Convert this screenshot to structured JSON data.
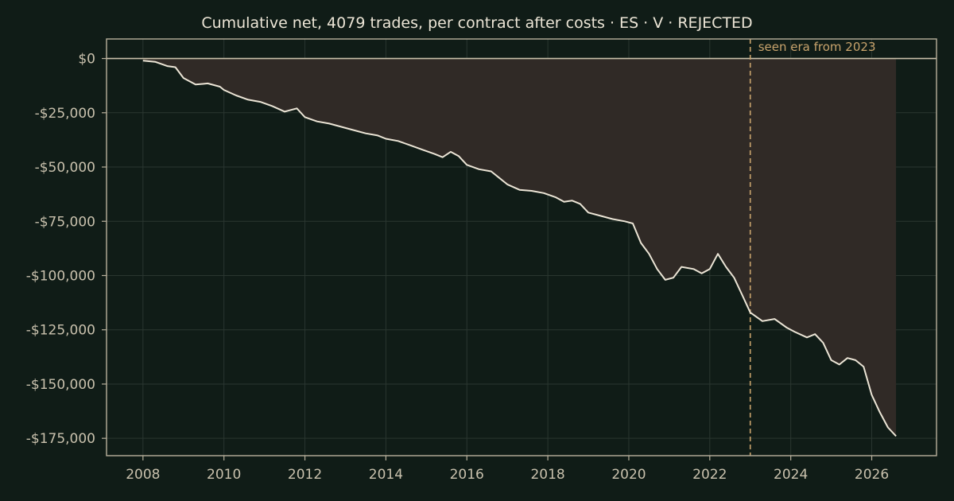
{
  "chart_data": {
    "type": "line",
    "title": "Cumulative net, 4079 trades, per contract after costs  ·  ES · V · REJECTED",
    "xlabel": "",
    "ylabel": "",
    "xlim": [
      2007.1,
      2027.6
    ],
    "ylim": [
      -183000,
      9000
    ],
    "x_ticks": [
      2008,
      2010,
      2012,
      2014,
      2016,
      2018,
      2020,
      2022,
      2024,
      2026
    ],
    "x_tick_labels": [
      "2008",
      "2010",
      "2012",
      "2014",
      "2016",
      "2018",
      "2020",
      "2022",
      "2024",
      "2026"
    ],
    "y_ticks": [
      0,
      -25000,
      -50000,
      -75000,
      -100000,
      -125000,
      -150000,
      -175000
    ],
    "y_tick_labels": [
      "$0",
      "-$25,000",
      "-$50,000",
      "-$75,000",
      "-$100,000",
      "-$125,000",
      "-$150,000",
      "-$175,000"
    ],
    "grid": true,
    "annotation": {
      "x": 2023.0,
      "text": "seen era from 2023"
    },
    "series": [
      {
        "x": [
          2008.0,
          2008.3,
          2008.6,
          2008.8,
          2009.0,
          2009.3,
          2009.6,
          2009.9,
          2010.0,
          2010.3,
          2010.6,
          2010.9,
          2011.2,
          2011.5,
          2011.8,
          2012.0,
          2012.3,
          2012.6,
          2012.9,
          2013.2,
          2013.5,
          2013.8,
          2014.0,
          2014.3,
          2014.6,
          2014.9,
          2015.2,
          2015.4,
          2015.6,
          2015.8,
          2016.0,
          2016.3,
          2016.6,
          2016.8,
          2017.0,
          2017.3,
          2017.6,
          2017.9,
          2018.2,
          2018.4,
          2018.6,
          2018.8,
          2019.0,
          2019.3,
          2019.6,
          2019.9,
          2020.1,
          2020.3,
          2020.5,
          2020.7,
          2020.9,
          2021.1,
          2021.3,
          2021.6,
          2021.8,
          2022.0,
          2022.2,
          2022.4,
          2022.6,
          2022.8,
          2023.0,
          2023.3,
          2023.6,
          2023.9,
          2024.1,
          2024.4,
          2024.6,
          2024.8,
          2025.0,
          2025.2,
          2025.4,
          2025.6,
          2025.8,
          2026.0,
          2026.2,
          2026.4,
          2026.6
        ],
        "values": [
          -1000,
          -1500,
          -3500,
          -4000,
          -9000,
          -12000,
          -11500,
          -13000,
          -14500,
          -17000,
          -19000,
          -20000,
          -22000,
          -24500,
          -23000,
          -27000,
          -29000,
          -30000,
          -31500,
          -33000,
          -34500,
          -35500,
          -37000,
          -38000,
          -40000,
          -42000,
          -44000,
          -45500,
          -43000,
          -45000,
          -49000,
          -51000,
          -52000,
          -55000,
          -58000,
          -60500,
          -61000,
          -62000,
          -64000,
          -66000,
          -65500,
          -67000,
          -71000,
          -72500,
          -74000,
          -75000,
          -76000,
          -85000,
          -90000,
          -97000,
          -102000,
          -101000,
          -96000,
          -97000,
          -99000,
          -97000,
          -90000,
          -96000,
          -101000,
          -109000,
          -117000,
          -121000,
          -120000,
          -124000,
          -126000,
          -128500,
          -127000,
          -131000,
          -139000,
          -141000,
          -138000,
          -139000,
          -142000,
          -155000,
          -163000,
          -170000,
          -174000
        ]
      }
    ]
  }
}
